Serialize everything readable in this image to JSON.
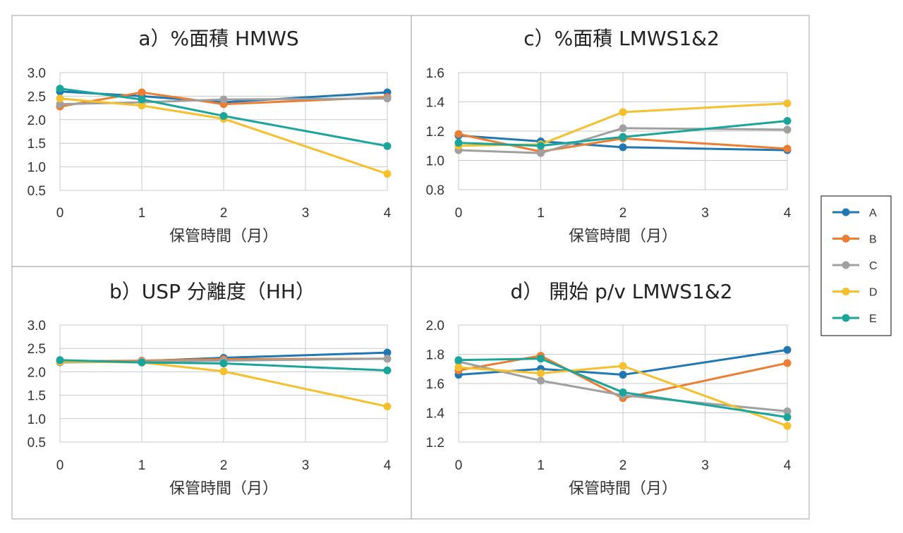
{
  "colors": {
    "A": "#1f77b4",
    "B": "#ed7d31",
    "C": "#a0a0a0",
    "D": "#f5c02c",
    "E": "#1aa59a"
  },
  "legend": {
    "items": [
      "A",
      "B",
      "C",
      "D",
      "E"
    ]
  },
  "chart_data": [
    {
      "type": "line",
      "title": "a）%面積 HMWS",
      "xlabel": "保管時間（月）",
      "ylabel": "",
      "x_ticks": [
        0,
        1,
        2,
        3,
        4
      ],
      "xlim": [
        0,
        4
      ],
      "y_ticks": [
        "3.0",
        "2.5",
        "2.0",
        "1.5",
        "1.0",
        "0.5"
      ],
      "ylim": [
        0.5,
        3.0
      ],
      "series": [
        {
          "name": "A",
          "x": [
            0,
            1,
            2,
            4
          ],
          "values": [
            2.6,
            2.5,
            2.37,
            2.58
          ]
        },
        {
          "name": "B",
          "x": [
            0,
            1,
            2,
            4
          ],
          "values": [
            2.28,
            2.58,
            2.33,
            2.48
          ]
        },
        {
          "name": "C",
          "x": [
            0,
            1,
            2,
            4
          ],
          "values": [
            2.33,
            2.37,
            2.43,
            2.45
          ]
        },
        {
          "name": "D",
          "x": [
            0,
            1,
            2,
            4
          ],
          "values": [
            2.45,
            2.3,
            2.02,
            0.85
          ]
        },
        {
          "name": "E",
          "x": [
            0,
            1,
            2,
            4
          ],
          "values": [
            2.66,
            2.43,
            2.08,
            1.44
          ]
        }
      ]
    },
    {
      "type": "line",
      "title": "c）%面積 LMWS1&2",
      "xlabel": "保管時間（月）",
      "ylabel": "",
      "x_ticks": [
        0,
        1,
        2,
        3,
        4
      ],
      "xlim": [
        0,
        4
      ],
      "y_ticks": [
        "1.6",
        "1.4",
        "1.2",
        "1.0",
        "0.8"
      ],
      "ylim": [
        0.8,
        1.6
      ],
      "series": [
        {
          "name": "A",
          "x": [
            0,
            1,
            2,
            4
          ],
          "values": [
            1.17,
            1.13,
            1.09,
            1.07
          ]
        },
        {
          "name": "B",
          "x": [
            0,
            1,
            2,
            4
          ],
          "values": [
            1.18,
            1.06,
            1.15,
            1.08
          ]
        },
        {
          "name": "C",
          "x": [
            0,
            1,
            2,
            4
          ],
          "values": [
            1.07,
            1.05,
            1.22,
            1.21
          ]
        },
        {
          "name": "D",
          "x": [
            0,
            1,
            2,
            4
          ],
          "values": [
            1.1,
            1.11,
            1.33,
            1.39
          ]
        },
        {
          "name": "E",
          "x": [
            0,
            1,
            2,
            4
          ],
          "values": [
            1.12,
            1.1,
            1.16,
            1.27
          ]
        }
      ]
    },
    {
      "type": "line",
      "title": "b）USP 分離度（HH）",
      "xlabel": "保管時間（月）",
      "ylabel": "",
      "x_ticks": [
        0,
        1,
        2,
        3,
        4
      ],
      "xlim": [
        0,
        4
      ],
      "y_ticks": [
        "3.0",
        "2.5",
        "2.0",
        "1.5",
        "1.0",
        "0.5"
      ],
      "ylim": [
        0.5,
        3.0
      ],
      "series": [
        {
          "name": "A",
          "x": [
            0,
            1,
            2,
            4
          ],
          "values": [
            2.23,
            2.23,
            2.3,
            2.41
          ]
        },
        {
          "name": "B",
          "x": [
            0,
            1,
            2,
            4
          ],
          "values": [
            2.22,
            2.24,
            2.27,
            2.28
          ]
        },
        {
          "name": "C",
          "x": [
            0,
            1,
            2,
            4
          ],
          "values": [
            2.2,
            2.22,
            2.24,
            2.28
          ]
        },
        {
          "name": "D",
          "x": [
            0,
            1,
            2,
            4
          ],
          "values": [
            2.22,
            2.2,
            2.01,
            1.26
          ]
        },
        {
          "name": "E",
          "x": [
            0,
            1,
            2,
            4
          ],
          "values": [
            2.25,
            2.2,
            2.18,
            2.03
          ]
        }
      ]
    },
    {
      "type": "line",
      "title": "d） 開始 p/v LMWS1&2",
      "xlabel": "保管時間（月）",
      "ylabel": "",
      "x_ticks": [
        0,
        1,
        2,
        3,
        4
      ],
      "xlim": [
        0,
        4
      ],
      "y_ticks": [
        "2.0",
        "1.8",
        "1.6",
        "1.4",
        "1.2"
      ],
      "ylim": [
        1.2,
        2.0
      ],
      "series": [
        {
          "name": "A",
          "x": [
            0,
            1,
            2,
            4
          ],
          "values": [
            1.66,
            1.7,
            1.66,
            1.83
          ]
        },
        {
          "name": "B",
          "x": [
            0,
            1,
            2,
            4
          ],
          "values": [
            1.69,
            1.79,
            1.5,
            1.74
          ]
        },
        {
          "name": "C",
          "x": [
            0,
            1,
            2,
            4
          ],
          "values": [
            1.75,
            1.62,
            1.52,
            1.41
          ]
        },
        {
          "name": "D",
          "x": [
            0,
            1,
            2,
            4
          ],
          "values": [
            1.71,
            1.67,
            1.72,
            1.31
          ]
        },
        {
          "name": "E",
          "x": [
            0,
            1,
            2,
            4
          ],
          "values": [
            1.76,
            1.77,
            1.54,
            1.37
          ]
        }
      ]
    }
  ]
}
